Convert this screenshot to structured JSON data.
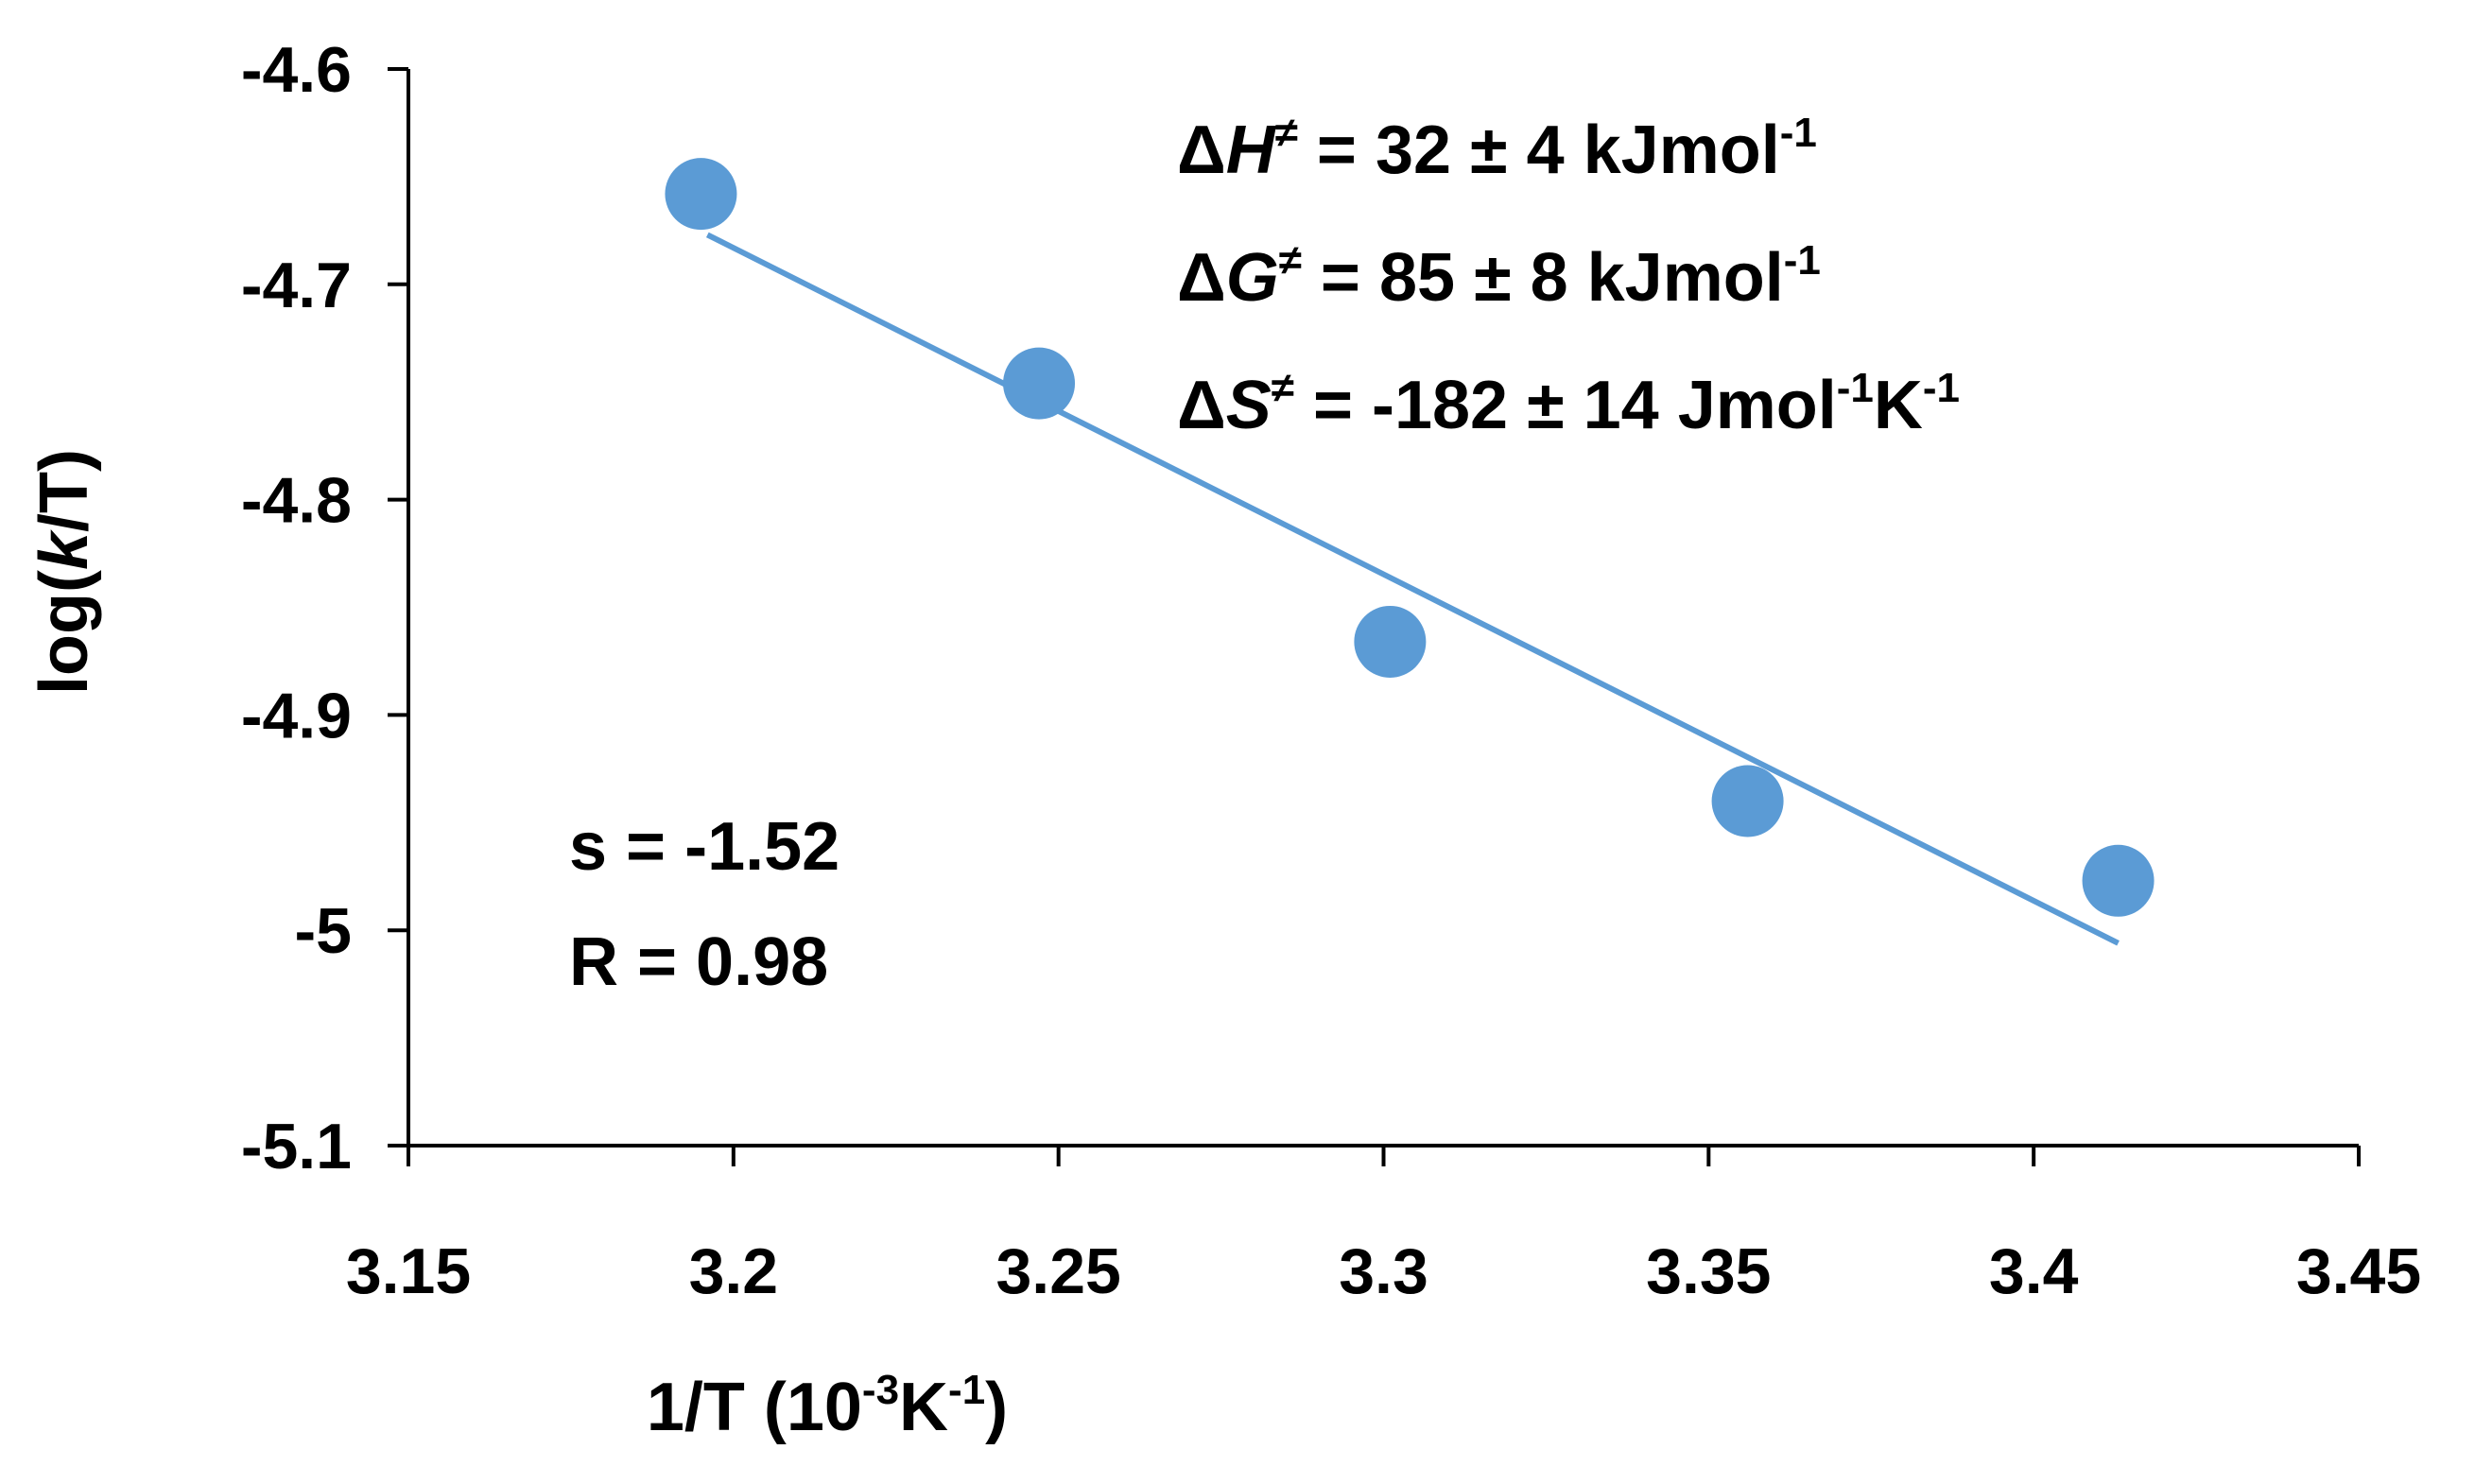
{
  "chart_data": {
    "type": "scatter",
    "title": "",
    "xlabel": {
      "text": "1/T (10",
      "exp1": "-3",
      "unit": "K",
      "exp2": "-1",
      "close": ")"
    },
    "ylabel": {
      "prefix": "log(",
      "italic": "k",
      "suffix": "/T)"
    },
    "xlim": [
      3.15,
      3.45
    ],
    "ylim": [
      -5.1,
      -4.6
    ],
    "xticks": [
      3.15,
      3.2,
      3.25,
      3.3,
      3.35,
      3.4,
      3.45
    ],
    "xtick_labels": [
      "3.15",
      "3.2",
      "3.25",
      "3.3",
      "3.35",
      "3.4",
      "3.45"
    ],
    "yticks": [
      -4.6,
      -4.7,
      -4.8,
      -4.9,
      -5.0,
      -5.1
    ],
    "ytick_labels": [
      "-4.6",
      "-4.7",
      "-4.8",
      "-4.9",
      "-5",
      "-5.1"
    ],
    "grid": false,
    "series": [
      {
        "name": "data",
        "color": "#5B9BD5",
        "x": [
          3.195,
          3.247,
          3.301,
          3.356,
          3.413
        ],
        "y": [
          -4.658,
          -4.746,
          -4.866,
          -4.94,
          -4.977
        ]
      }
    ],
    "trendline": {
      "color": "#5B9BD5",
      "x": [
        3.196,
        3.413
      ],
      "y": [
        -4.677,
        -5.006
      ]
    },
    "annotations": {
      "thermo": [
        {
          "delta": "Δ",
          "sym": "H",
          "dagger": "≠",
          "text": " = 32 ± 4 kJmol",
          "sup1": "-1",
          "mid": "",
          "sup2": ""
        },
        {
          "delta": "Δ",
          "sym": "G",
          "dagger": "≠",
          "text": " = 85 ± 8 kJmol",
          "sup1": "-1",
          "mid": "",
          "sup2": ""
        },
        {
          "delta": "Δ",
          "sym": "S",
          "dagger": "≠",
          "text": " = -182 ± 14 Jmol",
          "sup1": "-1",
          "mid": "K",
          "sup2": "-1"
        }
      ],
      "slope": "s = -1.52",
      "r": "R = 0.98"
    }
  }
}
